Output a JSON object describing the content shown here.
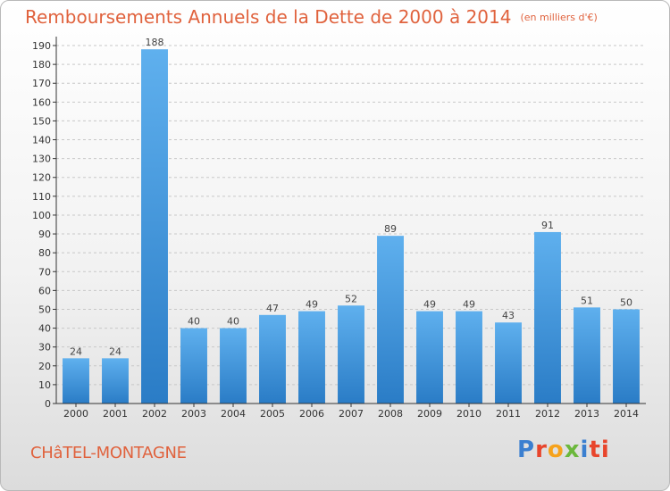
{
  "chart_data": {
    "type": "bar",
    "title": "Remboursements Annuels de la Dette de 2000 à 2014",
    "unit": "(en milliers d'€)",
    "categories": [
      "2000",
      "2001",
      "2002",
      "2003",
      "2004",
      "2005",
      "2006",
      "2007",
      "2008",
      "2009",
      "2010",
      "2011",
      "2012",
      "2013",
      "2014"
    ],
    "values": [
      24,
      24,
      188,
      40,
      40,
      47,
      49,
      52,
      89,
      49,
      49,
      43,
      91,
      51,
      50
    ],
    "ylim": [
      0,
      190
    ],
    "yticks": [
      0,
      10,
      20,
      30,
      40,
      50,
      60,
      70,
      80,
      90,
      100,
      110,
      120,
      130,
      140,
      150,
      160,
      170,
      180,
      190
    ],
    "grid": true,
    "bar_color": "#4a9fe0"
  },
  "footer": {
    "commune": "CHâTEL-MONTAGNE",
    "logo": [
      "P",
      "r",
      "o",
      "x",
      "i",
      "ti"
    ]
  }
}
